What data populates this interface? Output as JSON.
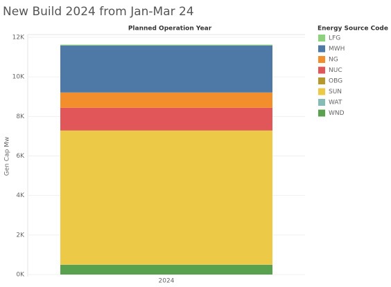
{
  "chart_data": {
    "type": "stacked-bar",
    "title": "New Build 2024 from Jan-Mar 24",
    "column_header": "Planned Operation Year",
    "y_label": "Gen Cap Mw",
    "legend_title": "Energy Source Code",
    "categories": [
      "2024"
    ],
    "series": [
      {
        "name": "LFG",
        "color": "#8cd17d",
        "values": [
          40
        ]
      },
      {
        "name": "MWH",
        "color": "#4e79a7",
        "values": [
          2380
        ]
      },
      {
        "name": "NG",
        "color": "#f28e2b",
        "values": [
          770
        ]
      },
      {
        "name": "NUC",
        "color": "#e15759",
        "values": [
          1150
        ]
      },
      {
        "name": "OBG",
        "color": "#b6992d",
        "values": [
          10
        ]
      },
      {
        "name": "SUN",
        "color": "#edc948",
        "values": [
          6780
        ]
      },
      {
        "name": "WAT",
        "color": "#86bcb6",
        "values": [
          10
        ]
      },
      {
        "name": "WND",
        "color": "#59a14f",
        "values": [
          490
        ]
      }
    ],
    "ylim": [
      0,
      12000
    ],
    "yticks": [
      {
        "value": 0,
        "label": "0K"
      },
      {
        "value": 2000,
        "label": "2K"
      },
      {
        "value": 4000,
        "label": "4K"
      },
      {
        "value": 6000,
        "label": "6K"
      },
      {
        "value": 8000,
        "label": "8K"
      },
      {
        "value": 10000,
        "label": "10K"
      },
      {
        "value": 12000,
        "label": "12K"
      }
    ],
    "grid": true,
    "legend": "right"
  }
}
